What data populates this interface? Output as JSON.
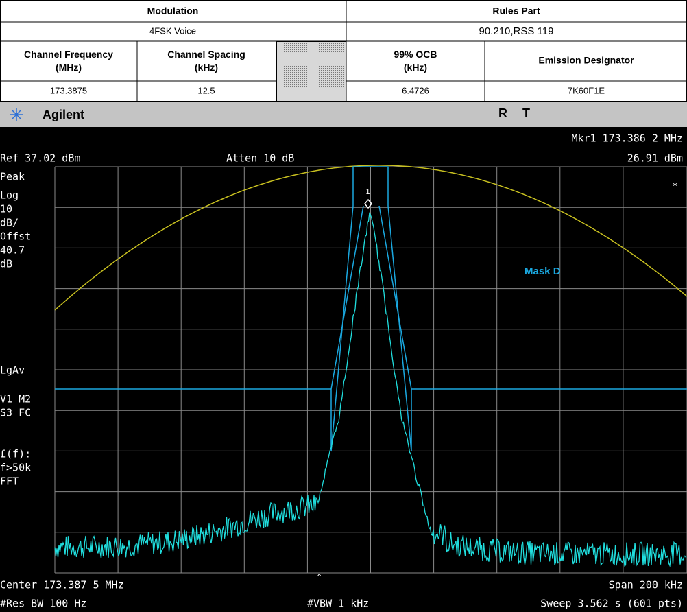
{
  "table": {
    "rows": [
      [
        "Modulation",
        "Rules Part"
      ],
      [
        "4FSK Voice",
        "90.210,RSS 119"
      ],
      [
        "Channel Frequency (MHz)",
        "Channel Spacing (kHz)",
        "99% OCB (kHz)",
        "Emission Designator"
      ],
      [
        "173.3875",
        "12.5",
        "6.4726",
        "7K60F1E"
      ]
    ]
  },
  "instrument": {
    "brand": "Agilent",
    "status": [
      "R",
      "T"
    ],
    "marker": "Mkr1  173.386 2 MHz",
    "ref": "Ref 37.02 dBm",
    "atten": "Atten 10 dB",
    "marker_level": "26.91 dBm",
    "left_labels": [
      "Peak",
      "Log",
      "10",
      "dB/",
      "Offst",
      "40.7",
      "dB",
      "LgAv",
      "V1  M2",
      "S3  FC",
      "£(f):",
      "f>50k",
      "FFT"
    ],
    "star": "*",
    "mask": "Mask D",
    "marker_number": "1",
    "center": "Center 173.387 5 MHz",
    "span": "Span 200 kHz",
    "rbw": "#Res BW 100 Hz",
    "vbw": "#VBW 1 kHz",
    "sweep": "Sweep 3.562 s (601 pts)",
    "caret": "^"
  }
}
